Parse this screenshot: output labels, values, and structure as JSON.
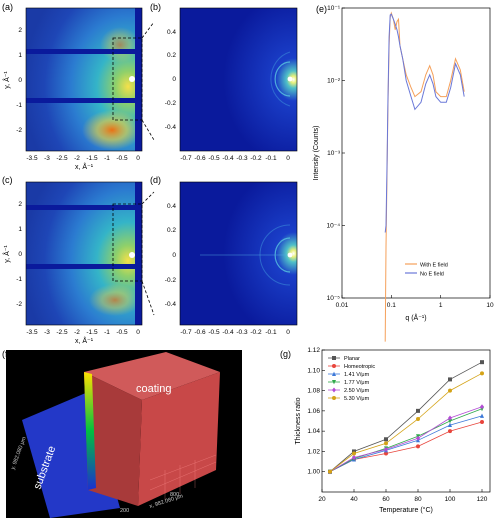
{
  "panels": {
    "a": {
      "label": "(a)",
      "xlabel": "x, Å⁻¹",
      "ylabel": "y, Å⁻¹",
      "xticks": [
        "-3.5",
        "-3",
        "-2.5",
        "-2",
        "-1.5",
        "-1",
        "-0.5",
        "0"
      ],
      "yticks": [
        "2",
        "1",
        "0",
        "-1",
        "-2"
      ]
    },
    "b": {
      "label": "(b)",
      "xticks": [
        "-0.7",
        "-0.6",
        "-0.5",
        "-0.4",
        "-0.3",
        "-0.2",
        "-0.1",
        "0"
      ],
      "yticks": [
        "0.4",
        "0.2",
        "0",
        "-0.2",
        "-0.4"
      ]
    },
    "c": {
      "label": "(c)",
      "xlabel": "x, Å⁻¹",
      "ylabel": "y, Å⁻¹",
      "xticks": [
        "-3.5",
        "-3",
        "-2.5",
        "-2",
        "-1.5",
        "-1",
        "-0.5",
        "0"
      ],
      "yticks": [
        "2",
        "1",
        "0",
        "-1",
        "-2"
      ]
    },
    "d": {
      "label": "(d)",
      "xticks": [
        "-0.7",
        "-0.6",
        "-0.5",
        "-0.4",
        "-0.3",
        "-0.2",
        "-0.1",
        "0"
      ],
      "yticks": [
        "0.4",
        "0.2",
        "0",
        "-0.2",
        "-0.4"
      ]
    },
    "f": {
      "label": "(f)",
      "coating": "coating",
      "substrate": "substrate",
      "axis_x": "x, 982.080 μm",
      "axis_y": "y, 982.080 μm",
      "ticks_x": [
        "200",
        "400",
        "600",
        "800"
      ],
      "ticks_y": [
        "200",
        "400",
        "600",
        "800"
      ]
    },
    "e": {
      "label": "(e)"
    },
    "g": {
      "label": "(g)"
    }
  },
  "chart_data": [
    {
      "type": "line",
      "panel": "e",
      "xlabel": "q (Å⁻¹)",
      "ylabel": "Intensity (Counts)",
      "xscale": "log",
      "yscale": "log",
      "xlim": [
        0.01,
        10
      ],
      "ylim": [
        1e-05,
        0.1
      ],
      "xticks": [
        "0.01",
        "0.1",
        "1",
        "10"
      ],
      "yticks": [
        "10⁻¹",
        "10⁻²",
        "10⁻³",
        "10⁻⁴",
        "10⁻⁵"
      ],
      "legend_position": "bottom-right",
      "series": [
        {
          "name": "With E field",
          "color": "#f5a05a",
          "x": [
            0.075,
            0.078,
            0.082,
            0.085,
            0.09,
            0.095,
            0.1,
            0.11,
            0.12,
            0.13,
            0.14,
            0.15,
            0.17,
            0.2,
            0.25,
            0.3,
            0.4,
            0.5,
            0.6,
            0.7,
            0.8,
            1.0,
            1.3,
            1.6,
            2.0,
            2.5,
            3.0
          ],
          "y": [
            2.5e-06,
            5e-05,
            0.0006,
            0.004,
            0.03,
            0.075,
            0.085,
            0.07,
            0.05,
            0.065,
            0.07,
            0.03,
            0.02,
            0.012,
            0.008,
            0.006,
            0.007,
            0.012,
            0.016,
            0.012,
            0.007,
            0.006,
            0.006,
            0.01,
            0.02,
            0.014,
            0.007
          ]
        },
        {
          "name": "No E field",
          "color": "#6a78d8",
          "x": [
            0.075,
            0.078,
            0.082,
            0.085,
            0.09,
            0.095,
            0.1,
            0.11,
            0.12,
            0.13,
            0.14,
            0.15,
            0.17,
            0.2,
            0.25,
            0.3,
            0.4,
            0.5,
            0.6,
            0.7,
            0.8,
            1.0,
            1.3,
            1.6,
            2.0,
            2.5,
            3.0
          ],
          "y": [
            8e-05,
            0.0001,
            0.0008,
            0.005,
            0.04,
            0.08,
            0.082,
            0.07,
            0.06,
            0.05,
            0.04,
            0.03,
            0.02,
            0.01,
            0.006,
            0.004,
            0.005,
            0.009,
            0.012,
            0.009,
            0.006,
            0.005,
            0.005,
            0.008,
            0.017,
            0.012,
            0.006
          ]
        }
      ]
    },
    {
      "type": "line",
      "panel": "g",
      "xlabel": "Temperature (°C)",
      "ylabel": "Thickness ratio",
      "xlim": [
        20,
        125
      ],
      "ylim": [
        0.98,
        1.12
      ],
      "xticks": [
        20,
        40,
        60,
        80,
        100,
        120
      ],
      "yticks": [
        1.0,
        1.02,
        1.04,
        1.06,
        1.08,
        1.1,
        1.12
      ],
      "legend_position": "top-left",
      "x": [
        25,
        40,
        60,
        80,
        100,
        120
      ],
      "series": [
        {
          "name": "Planar",
          "color": "#555555",
          "marker": "square",
          "values": [
            1.0,
            1.02,
            1.032,
            1.06,
            1.091,
            1.108
          ]
        },
        {
          "name": "Homeotropic",
          "color": "#e8453c",
          "marker": "circle",
          "values": [
            1.0,
            1.012,
            1.018,
            1.025,
            1.04,
            1.049
          ]
        },
        {
          "name": "1.41 V/μm",
          "color": "#3b78d8",
          "marker": "triangle",
          "values": [
            1.0,
            1.012,
            1.021,
            1.031,
            1.046,
            1.055
          ]
        },
        {
          "name": "1.77 V/μm",
          "color": "#2ea84a",
          "marker": "triangle-down",
          "values": [
            1.0,
            1.013,
            1.023,
            1.035,
            1.05,
            1.062
          ]
        },
        {
          "name": "2.50 V/μm",
          "color": "#b44cd6",
          "marker": "diamond",
          "values": [
            1.0,
            1.014,
            1.022,
            1.033,
            1.053,
            1.064
          ]
        },
        {
          "name": "5.30 V/μm",
          "color": "#d4a317",
          "marker": "circle",
          "values": [
            1.0,
            1.018,
            1.028,
            1.052,
            1.08,
            1.097
          ]
        }
      ]
    }
  ]
}
